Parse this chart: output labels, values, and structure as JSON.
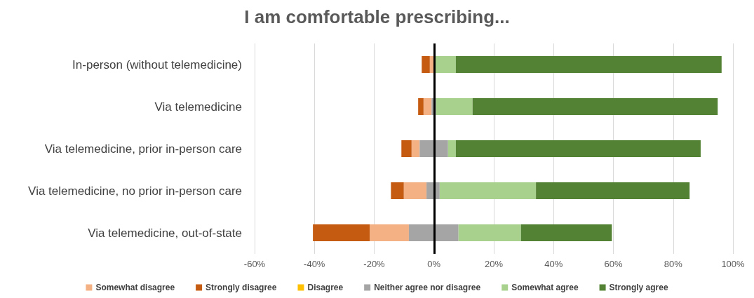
{
  "chart_data": {
    "type": "bar",
    "title": "I am comfortable prescribing...",
    "orientation": "horizontal",
    "categories": [
      "In-person (without telemedicine)",
      "Via telemedicine",
      "Via telemedicine, prior in-person care",
      "Via telemedicine, no prior in-person care",
      "Via telemedicine, out-of-state"
    ],
    "series": [
      {
        "name": "Somewhat disagree",
        "color": "#f4b183",
        "base": [
          -1.4,
          -3.5,
          -7.5,
          -10.1,
          -21.5
        ],
        "values": [
          1.4,
          2.7,
          2.7,
          7.6,
          13.1
        ]
      },
      {
        "name": "Strongly disagree",
        "color": "#c55a11",
        "base": [
          -4.1,
          -5.3,
          -10.9,
          -14.4,
          -40.5
        ],
        "values": [
          2.7,
          1.8,
          3.4,
          4.3,
          19.0
        ]
      },
      {
        "name": "Disagree",
        "color": "#ffc000",
        "base": [
          null,
          null,
          null,
          null,
          null
        ],
        "values": [
          null,
          null,
          null,
          null,
          null
        ]
      },
      {
        "name": "Neither agree nor disagree",
        "color": "#a5a5a5",
        "base": [
          null,
          -0.8,
          -4.8,
          -2.5,
          -8.4
        ],
        "values": [
          null,
          1.5,
          9.5,
          4.4,
          16.6
        ]
      },
      {
        "name": "Somewhat agree",
        "color": "#a9d18e",
        "base": [
          0,
          0.7,
          4.7,
          1.9,
          8.2
        ],
        "values": [
          7.3,
          12.2,
          2.6,
          32.2,
          20.9
        ]
      },
      {
        "name": "Strongly agree",
        "color": "#548235",
        "base": [
          7.3,
          12.9,
          7.3,
          34.1,
          29.1
        ],
        "values": [
          88.9,
          82.0,
          81.9,
          51.4,
          30.4
        ]
      }
    ],
    "xlim": [
      -60,
      100
    ],
    "xticks": [
      {
        "value": -60,
        "label": "-60%"
      },
      {
        "value": -40,
        "label": "-40%"
      },
      {
        "value": -20,
        "label": "-20%"
      },
      {
        "value": 0,
        "label": "0%"
      },
      {
        "value": 20,
        "label": "20%"
      },
      {
        "value": 40,
        "label": "40%"
      },
      {
        "value": 60,
        "label": "60%"
      },
      {
        "value": 80,
        "label": "80%"
      },
      {
        "value": 100,
        "label": "100%"
      }
    ],
    "ref_lines": [
      {
        "axis": "x",
        "value": 0,
        "color": "#000000"
      }
    ],
    "grid": "x",
    "legend": "bottom"
  }
}
